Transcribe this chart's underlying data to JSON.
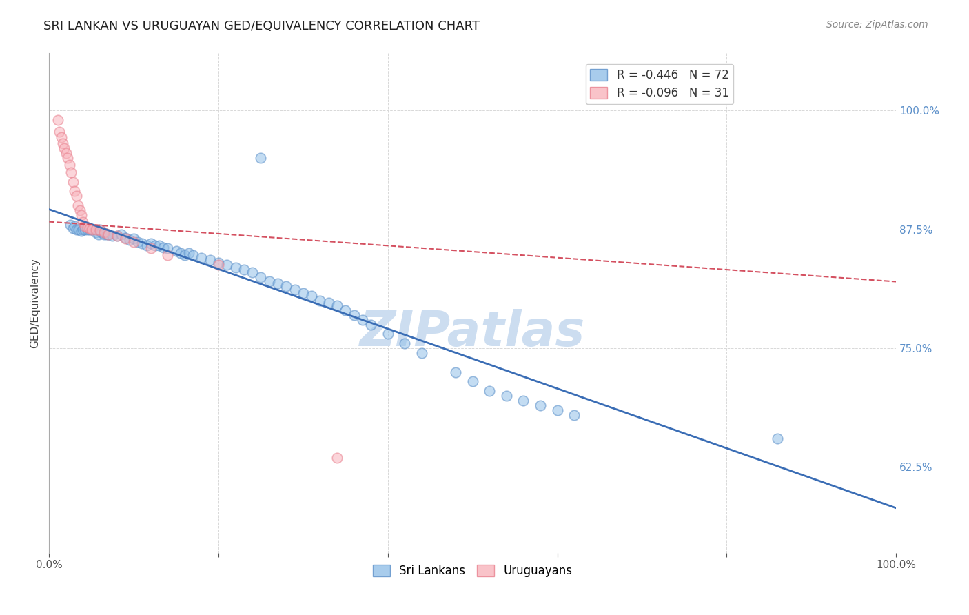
{
  "title": "SRI LANKAN VS URUGUAYAN GED/EQUIVALENCY CORRELATION CHART",
  "source": "Source: ZipAtlas.com",
  "ylabel": "GED/Equivalency",
  "watermark": "ZIPatlas",
  "yticks": [
    0.625,
    0.75,
    0.875,
    1.0
  ],
  "ytick_labels": [
    "62.5%",
    "75.0%",
    "87.5%",
    "100.0%"
  ],
  "xlim": [
    0.0,
    1.0
  ],
  "ylim": [
    0.535,
    1.06
  ],
  "legend_line1": "R = -0.446   N = 72",
  "legend_line2": "R = -0.096   N = 31",
  "blue_scatter_x": [
    0.025,
    0.028,
    0.03,
    0.032,
    0.035,
    0.038,
    0.04,
    0.042,
    0.045,
    0.048,
    0.05,
    0.052,
    0.055,
    0.058,
    0.06,
    0.062,
    0.065,
    0.068,
    0.07,
    0.075,
    0.08,
    0.085,
    0.09,
    0.095,
    0.1,
    0.105,
    0.11,
    0.115,
    0.12,
    0.125,
    0.13,
    0.135,
    0.14,
    0.15,
    0.155,
    0.16,
    0.165,
    0.17,
    0.18,
    0.19,
    0.2,
    0.21,
    0.22,
    0.23,
    0.24,
    0.25,
    0.26,
    0.27,
    0.28,
    0.29,
    0.3,
    0.31,
    0.32,
    0.33,
    0.34,
    0.35,
    0.36,
    0.37,
    0.38,
    0.4,
    0.42,
    0.44,
    0.48,
    0.5,
    0.52,
    0.54,
    0.56,
    0.58,
    0.6,
    0.62,
    0.86,
    0.25
  ],
  "blue_scatter_y": [
    0.88,
    0.876,
    0.878,
    0.875,
    0.875,
    0.873,
    0.875,
    0.875,
    0.875,
    0.875,
    0.875,
    0.875,
    0.872,
    0.87,
    0.875,
    0.872,
    0.87,
    0.87,
    0.87,
    0.868,
    0.868,
    0.87,
    0.866,
    0.864,
    0.865,
    0.862,
    0.86,
    0.858,
    0.86,
    0.858,
    0.858,
    0.856,
    0.855,
    0.852,
    0.85,
    0.848,
    0.85,
    0.848,
    0.845,
    0.843,
    0.84,
    0.838,
    0.835,
    0.833,
    0.83,
    0.825,
    0.82,
    0.818,
    0.815,
    0.812,
    0.808,
    0.805,
    0.8,
    0.798,
    0.795,
    0.79,
    0.785,
    0.78,
    0.775,
    0.765,
    0.755,
    0.745,
    0.725,
    0.715,
    0.705,
    0.7,
    0.695,
    0.69,
    0.685,
    0.68,
    0.655,
    0.95
  ],
  "pink_scatter_x": [
    0.01,
    0.012,
    0.014,
    0.016,
    0.018,
    0.02,
    0.022,
    0.024,
    0.026,
    0.028,
    0.03,
    0.032,
    0.034,
    0.036,
    0.038,
    0.04,
    0.042,
    0.045,
    0.048,
    0.05,
    0.055,
    0.06,
    0.065,
    0.07,
    0.08,
    0.09,
    0.1,
    0.12,
    0.14,
    0.2,
    0.34
  ],
  "pink_scatter_y": [
    0.99,
    0.978,
    0.972,
    0.965,
    0.96,
    0.955,
    0.95,
    0.943,
    0.935,
    0.925,
    0.915,
    0.91,
    0.9,
    0.895,
    0.89,
    0.883,
    0.878,
    0.877,
    0.876,
    0.875,
    0.875,
    0.874,
    0.872,
    0.87,
    0.868,
    0.865,
    0.862,
    0.855,
    0.848,
    0.838,
    0.635
  ],
  "blue_line_x": [
    0.0,
    1.0
  ],
  "blue_line_y": [
    0.896,
    0.582
  ],
  "pink_line_x": [
    0.0,
    1.0
  ],
  "pink_line_y": [
    0.883,
    0.82
  ],
  "scatter_size": 110,
  "scatter_alpha": 0.55,
  "scatter_linewidth": 1.2,
  "blue_color": "#92c0e8",
  "blue_edge_color": "#5b8fc9",
  "pink_color": "#f8b4bc",
  "pink_edge_color": "#e8808e",
  "line_blue_color": "#3a6db5",
  "line_pink_color": "#d45060",
  "grid_color": "#d8d8d8",
  "background_color": "#ffffff",
  "title_fontsize": 13,
  "axis_label_fontsize": 11,
  "tick_fontsize": 11,
  "source_fontsize": 10,
  "watermark_fontsize": 52,
  "watermark_color": "#ccddf0",
  "right_ytick_color": "#5b8fc9"
}
